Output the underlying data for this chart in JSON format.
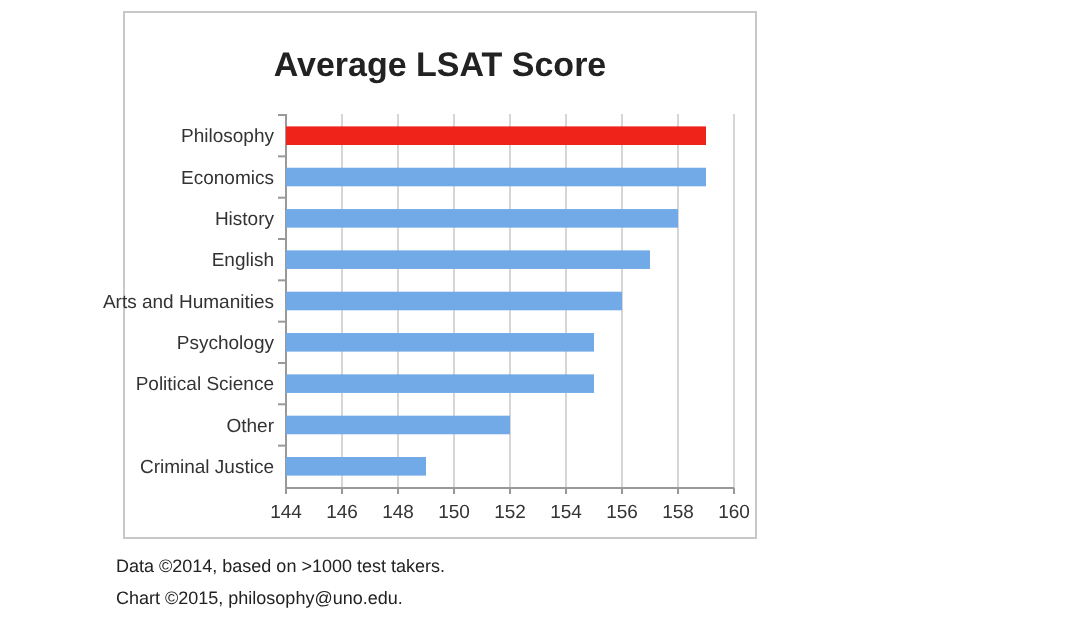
{
  "chart_data": {
    "type": "bar",
    "orientation": "horizontal",
    "title": "Average LSAT Score",
    "categories": [
      "Philosophy",
      "Economics",
      "History",
      "English",
      "Arts and Humanities",
      "Psychology",
      "Political Science",
      "Other",
      "Criminal Justice"
    ],
    "values": [
      159,
      159,
      158,
      157,
      156,
      155,
      155,
      152,
      149
    ],
    "colors": [
      "#f0231a",
      "#72aae8",
      "#72aae8",
      "#72aae8",
      "#72aae8",
      "#72aae8",
      "#72aae8",
      "#72aae8",
      "#72aae8"
    ],
    "xlim": [
      144,
      160
    ],
    "xticks": [
      144,
      146,
      148,
      150,
      152,
      154,
      156,
      158,
      160
    ],
    "grid": "x",
    "annotations": [
      "Data ©2014, based on >1000 test takers.",
      "Chart ©2015, philosophy@uno.edu."
    ]
  }
}
